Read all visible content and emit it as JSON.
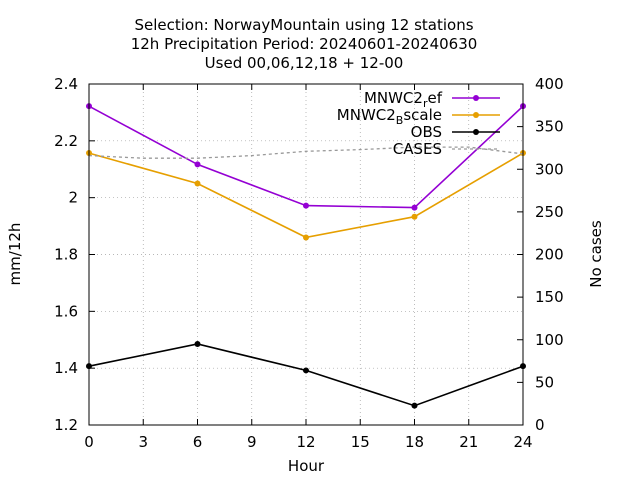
{
  "chart_data": {
    "type": "line",
    "title_lines": [
      "Selection: NorwayMountain using     12 stations",
      "12h Precipitation    Period: 20240601-20240630",
      "Used 00,06,12,18 + 12-00"
    ],
    "xlabel": "Hour",
    "ylabel": "mm/12h",
    "y2label": "No cases",
    "xlim": [
      0,
      24
    ],
    "ylim": [
      1.2,
      2.4
    ],
    "y2lim": [
      0,
      400
    ],
    "xticks": [
      0,
      3,
      6,
      9,
      12,
      15,
      18,
      21,
      24
    ],
    "yticks": [
      "1.2",
      "1.4",
      "1.6",
      "1.8",
      "2",
      "2.2",
      "2.4"
    ],
    "y2ticks": [
      0,
      50,
      100,
      150,
      200,
      250,
      300,
      350,
      400
    ],
    "grid": true,
    "legend_position": "top-right",
    "series": [
      {
        "name": "MNWC2",
        "name_sub": "r",
        "name_tail": "ef",
        "color": "#9400d3",
        "axis": "y",
        "x": [
          0,
          6,
          12,
          18,
          24
        ],
        "values": [
          2.322,
          2.117,
          1.972,
          1.965,
          2.322
        ]
      },
      {
        "name": "MNWC2",
        "name_sub": "B",
        "name_tail": "scale",
        "color": "#e69f00",
        "axis": "y",
        "x": [
          0,
          6,
          12,
          18,
          24
        ],
        "values": [
          2.157,
          2.05,
          1.86,
          1.933,
          2.157
        ]
      },
      {
        "name": "OBS",
        "color": "#000000",
        "axis": "y",
        "x": [
          0,
          6,
          12,
          18,
          24
        ],
        "values": [
          1.407,
          1.485,
          1.392,
          1.268,
          1.407
        ]
      },
      {
        "name": "CASES",
        "color": "#999999",
        "axis": "y2",
        "dashed": true,
        "x": [
          0,
          3,
          6,
          9,
          12,
          15,
          18,
          21,
          24
        ],
        "values": [
          316,
          313,
          313,
          316,
          321,
          323,
          326,
          326,
          318
        ]
      }
    ]
  }
}
